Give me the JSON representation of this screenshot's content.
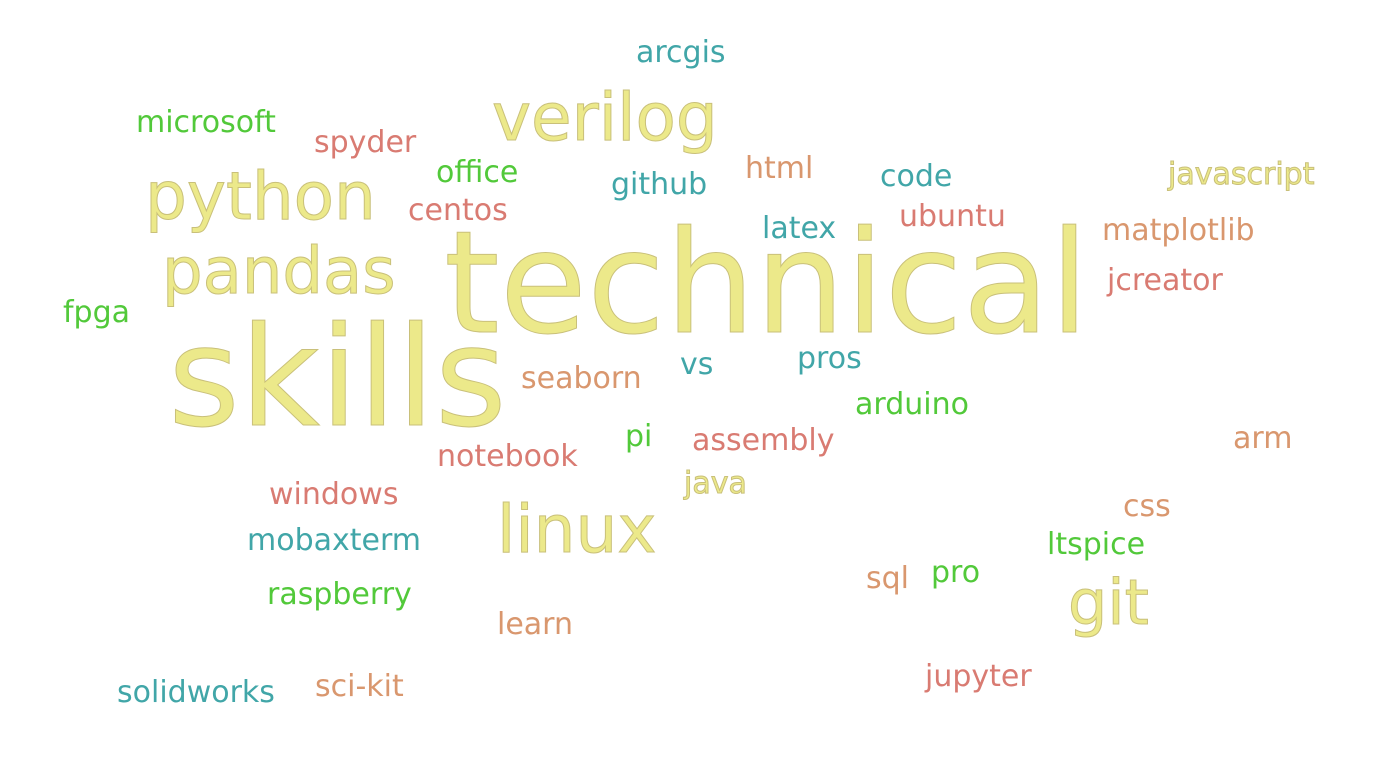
{
  "colors": {
    "yellow": "#ece98a",
    "green": "#52c93a",
    "teal": "#41a6a8",
    "rose": "#d97b72",
    "orange": "#d9976e"
  },
  "words": [
    {
      "text": "technical",
      "color": "yellow"
    },
    {
      "text": "skills",
      "color": "yellow"
    },
    {
      "text": "python",
      "color": "yellow"
    },
    {
      "text": "pandas",
      "color": "yellow"
    },
    {
      "text": "verilog",
      "color": "yellow"
    },
    {
      "text": "linux",
      "color": "yellow"
    },
    {
      "text": "git",
      "color": "yellow"
    },
    {
      "text": "javascript",
      "color": "yellow"
    },
    {
      "text": "java",
      "color": "yellow"
    },
    {
      "text": "arcgis",
      "color": "teal"
    },
    {
      "text": "microsoft",
      "color": "green"
    },
    {
      "text": "spyder",
      "color": "rose"
    },
    {
      "text": "office",
      "color": "green"
    },
    {
      "text": "github",
      "color": "teal"
    },
    {
      "text": "html",
      "color": "orange"
    },
    {
      "text": "code",
      "color": "teal"
    },
    {
      "text": "centos",
      "color": "rose"
    },
    {
      "text": "ubuntu",
      "color": "rose"
    },
    {
      "text": "latex",
      "color": "teal"
    },
    {
      "text": "matplotlib",
      "color": "orange"
    },
    {
      "text": "jcreator",
      "color": "rose"
    },
    {
      "text": "fpga",
      "color": "green"
    },
    {
      "text": "vs",
      "color": "teal"
    },
    {
      "text": "pros",
      "color": "teal"
    },
    {
      "text": "seaborn",
      "color": "orange"
    },
    {
      "text": "arduino",
      "color": "green"
    },
    {
      "text": "pi",
      "color": "green"
    },
    {
      "text": "assembly",
      "color": "rose"
    },
    {
      "text": "notebook",
      "color": "rose"
    },
    {
      "text": "arm",
      "color": "orange"
    },
    {
      "text": "windows",
      "color": "rose"
    },
    {
      "text": "css",
      "color": "orange"
    },
    {
      "text": "mobaxterm",
      "color": "teal"
    },
    {
      "text": "ltspice",
      "color": "green"
    },
    {
      "text": "sql",
      "color": "orange"
    },
    {
      "text": "pro",
      "color": "green"
    },
    {
      "text": "raspberry",
      "color": "green"
    },
    {
      "text": "learn",
      "color": "orange"
    },
    {
      "text": "jupyter",
      "color": "rose"
    },
    {
      "text": "solidworks",
      "color": "teal"
    },
    {
      "text": "sci-kit",
      "color": "orange"
    }
  ]
}
